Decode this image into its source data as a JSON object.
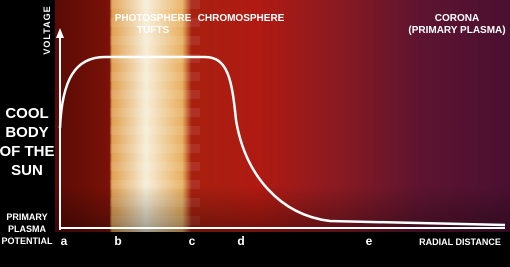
{
  "axis": {
    "y_label": "VOLTAGE",
    "x_label": "RADIAL DISTANCE"
  },
  "regions": {
    "photosphere": [
      "PHOTOSPHERE",
      "TUFTS"
    ],
    "chromosphere": "CHROMOSPHERE",
    "corona": [
      "CORONA",
      "(PRIMARY PLASMA)"
    ]
  },
  "left_label": [
    "COOL",
    "BODY",
    "OF THE",
    "SUN"
  ],
  "baseline_label": [
    "PRIMARY",
    "PLASMA",
    "POTENTIAL"
  ],
  "points": [
    "a",
    "b",
    "c",
    "d",
    "e"
  ]
}
